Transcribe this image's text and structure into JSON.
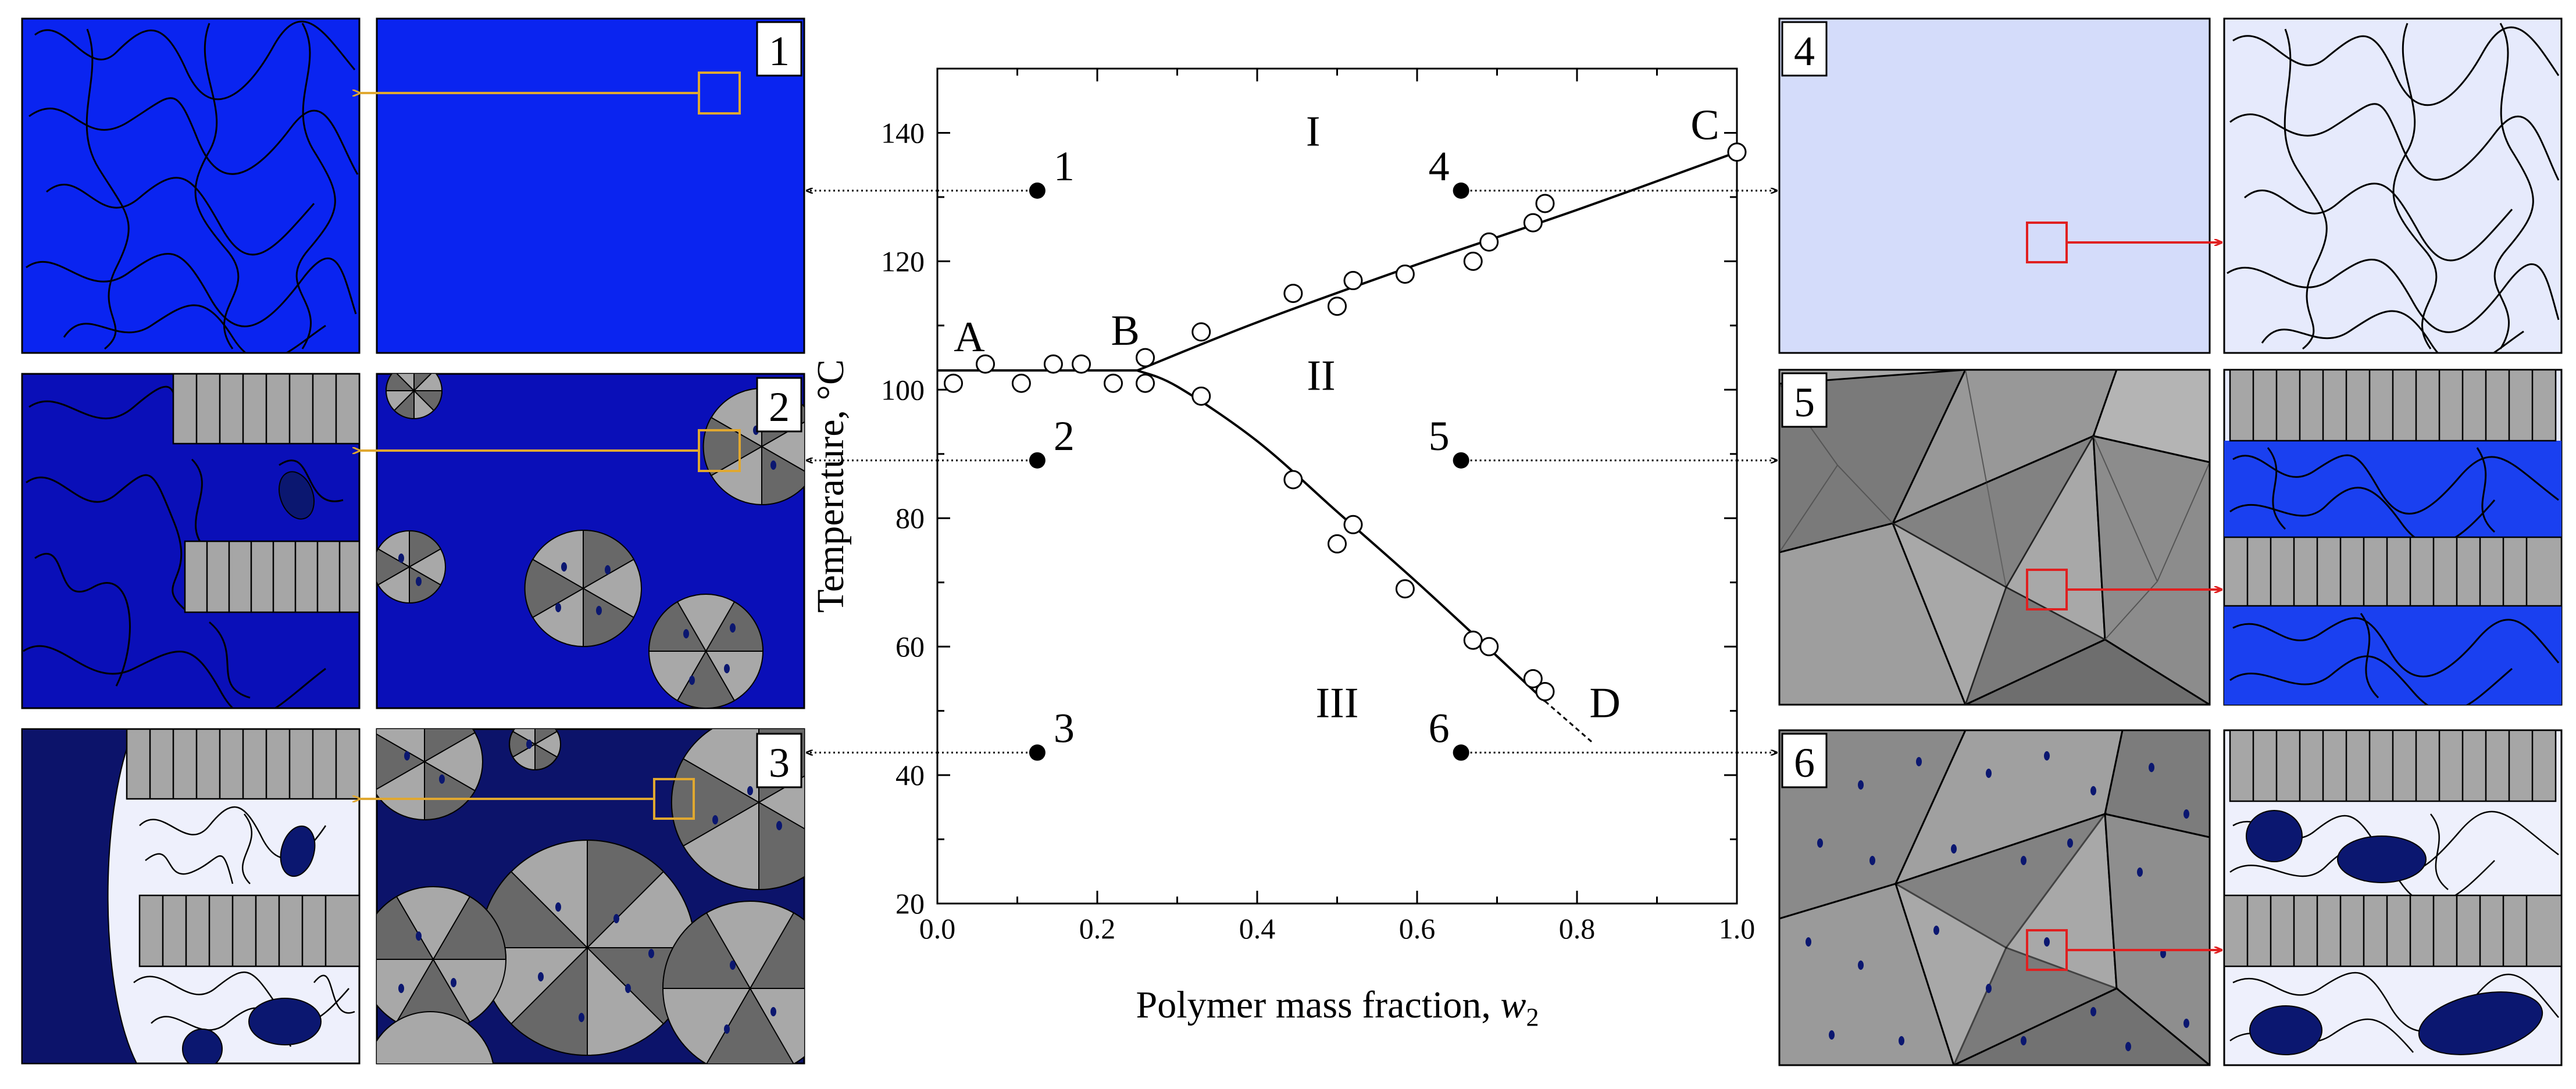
{
  "chart_data": {
    "type": "scatter",
    "xlabel": "Polymer mass fraction, ",
    "xlabel_var": "w",
    "xlabel_sub": "2",
    "ylabel": "Temperature, °C",
    "xlim": [
      0.0,
      1.0
    ],
    "ylim": [
      20,
      150
    ],
    "x_ticks": [
      0.0,
      0.2,
      0.4,
      0.6,
      0.8,
      1.0
    ],
    "x_tick_labels": [
      "0.0",
      "0.2",
      "0.4",
      "0.6",
      "0.8",
      "1.0"
    ],
    "y_ticks": [
      20,
      40,
      60,
      80,
      100,
      120,
      140
    ],
    "y_tick_labels": [
      "20",
      "40",
      "60",
      "80",
      "100",
      "120",
      "140"
    ],
    "measured_points": [
      [
        0.02,
        101
      ],
      [
        0.06,
        104
      ],
      [
        0.105,
        101
      ],
      [
        0.145,
        104
      ],
      [
        0.18,
        104
      ],
      [
        0.22,
        101
      ],
      [
        0.26,
        105
      ],
      [
        0.26,
        101
      ],
      [
        0.33,
        99
      ],
      [
        0.33,
        109
      ],
      [
        0.445,
        115
      ],
      [
        0.445,
        86
      ],
      [
        0.5,
        113
      ],
      [
        0.5,
        76
      ],
      [
        0.52,
        117
      ],
      [
        0.52,
        79
      ],
      [
        0.585,
        118
      ],
      [
        0.585,
        69
      ],
      [
        0.67,
        120
      ],
      [
        0.67,
        61
      ],
      [
        0.69,
        123
      ],
      [
        0.69,
        60
      ],
      [
        0.745,
        126
      ],
      [
        0.745,
        55
      ],
      [
        0.76,
        129
      ],
      [
        0.76,
        53
      ],
      [
        1.0,
        137
      ]
    ],
    "curve_AB": [
      [
        0.0,
        103
      ],
      [
        0.25,
        103
      ]
    ],
    "curve_BC": [
      [
        0.25,
        103
      ],
      [
        0.4,
        110.5
      ],
      [
        0.6,
        119.5
      ],
      [
        0.8,
        128
      ],
      [
        1.0,
        137
      ]
    ],
    "curve_BD": [
      [
        0.25,
        103
      ],
      [
        0.3,
        100.5
      ],
      [
        0.4,
        92
      ],
      [
        0.5,
        81
      ],
      [
        0.6,
        70
      ],
      [
        0.7,
        58.5
      ],
      [
        0.76,
        51.5
      ]
    ],
    "curve_BD_extrapolated": [
      [
        0.76,
        51.5
      ],
      [
        0.82,
        45
      ]
    ],
    "point_labels": [
      {
        "name": "A",
        "x": 0.04,
        "y": 106
      },
      {
        "name": "B",
        "x": 0.235,
        "y": 107
      },
      {
        "name": "C",
        "x": 0.96,
        "y": 139
      },
      {
        "name": "D",
        "x": 0.835,
        "y": 49
      }
    ],
    "region_labels": [
      {
        "name": "I",
        "x": 0.47,
        "y": 138
      },
      {
        "name": "II",
        "x": 0.48,
        "y": 100
      },
      {
        "name": "III",
        "x": 0.5,
        "y": 49
      }
    ],
    "states": [
      {
        "name": "1",
        "x": 0.125,
        "y": 131
      },
      {
        "name": "2",
        "x": 0.125,
        "y": 89
      },
      {
        "name": "3",
        "x": 0.125,
        "y": 43.5
      },
      {
        "name": "4",
        "x": 0.655,
        "y": 131
      },
      {
        "name": "5",
        "x": 0.655,
        "y": 89
      },
      {
        "name": "6",
        "x": 0.655,
        "y": 43.5
      }
    ]
  },
  "panels": {
    "labels": [
      "1",
      "2",
      "3",
      "4",
      "5",
      "6"
    ],
    "colors": {
      "blue_solution": "#0a24f0",
      "dark_solution": "#0a0fb8",
      "navy_solution": "#0c136a",
      "pale_gel": "#d4dcfa",
      "lamella": "#a6a6a6",
      "spherulite_light": "#a8a8a8",
      "spherulite_dark": "#686868",
      "droplet": "#0b1770",
      "zoom_box_yellow": "#e0a830",
      "zoom_box_red": "#e02020"
    }
  }
}
